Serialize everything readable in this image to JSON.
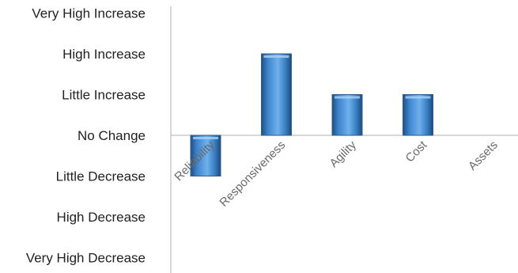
{
  "chart_data": {
    "type": "bar",
    "title": "",
    "xlabel": "",
    "ylabel": "",
    "categories": [
      "Reliability",
      "Responsiveness",
      "Agility",
      "Cost",
      "Assets"
    ],
    "values": [
      -1,
      2,
      1,
      1,
      0
    ],
    "ylim": [
      -3,
      3
    ],
    "y_tick_labels": [
      {
        "value": 3,
        "label": "Very High Increase"
      },
      {
        "value": 2,
        "label": "High Increase"
      },
      {
        "value": 1,
        "label": "Little Increase"
      },
      {
        "value": 0,
        "label": "No Change"
      },
      {
        "value": -1,
        "label": "Little Decrease"
      },
      {
        "value": -2,
        "label": "High Decrease"
      },
      {
        "value": -3,
        "label": "Very High Decrease"
      }
    ],
    "grid": false,
    "legend": "none",
    "colors": {
      "bar_fill": "#4a90d9",
      "bar_edge": "#2e5f91",
      "axis": "#bfbfbf"
    }
  }
}
